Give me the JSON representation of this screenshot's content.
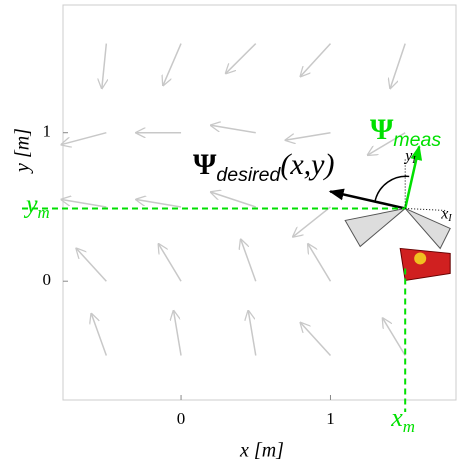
{
  "chart_data": {
    "type": "quiver",
    "x_label": "x [m]",
    "y_label": "y [m]",
    "xlim": [
      -0.79,
      1.84
    ],
    "ylim": [
      -0.8,
      1.86
    ],
    "xticks": [
      0,
      1
    ],
    "yticks": [
      0,
      1
    ],
    "series": [
      {
        "color": "#c8c8c8",
        "x": [
          -0.5,
          0,
          0.5,
          1.0,
          1.5,
          -0.5,
          0,
          0.5,
          1.0,
          1.5,
          -0.5,
          0,
          0.5,
          1.0,
          -0.5,
          0,
          0.5,
          1.0,
          -0.5,
          0,
          0.5,
          1.0,
          1.5
        ],
        "y": [
          1.6,
          1.6,
          1.6,
          1.6,
          1.6,
          1.0,
          1.0,
          1.0,
          1.0,
          1.0,
          0.5,
          0.5,
          0.5,
          0.5,
          0.0,
          0.0,
          0.0,
          0.0,
          -0.5,
          -0.5,
          -0.5,
          -0.5,
          -0.5
        ],
        "u": [
          -0.03,
          -0.12,
          -0.2,
          -0.2,
          -0.1,
          -0.3,
          -0.3,
          -0.3,
          -0.3,
          -0.25,
          -0.3,
          -0.3,
          -0.3,
          -0.25,
          -0.2,
          -0.15,
          -0.1,
          -0.15,
          -0.1,
          -0.05,
          -0.05,
          -0.2,
          -0.15
        ],
        "v": [
          -0.3,
          -0.28,
          -0.2,
          -0.22,
          -0.3,
          -0.08,
          0,
          0.05,
          -0.05,
          -0.15,
          0.05,
          0.05,
          0.1,
          -0.2,
          0.22,
          0.25,
          0.28,
          0.25,
          0.28,
          0.3,
          0.3,
          0.22,
          0.25
        ]
      }
    ],
    "robot": {
      "x": 1.5,
      "y": 0.49,
      "color": "#00e000"
    },
    "annotations": {
      "x_m": {
        "symbol": "x",
        "subscript": "m"
      },
      "y_m": {
        "symbol": "y",
        "subscript": "m"
      },
      "psi_desired": {
        "symbol": "Ψ",
        "subscript": "desired",
        "args": "(x,y)"
      },
      "psi_meas": {
        "symbol": "Ψ",
        "subscript": "meas"
      },
      "y_I": {
        "symbol": "y",
        "subscript": "I"
      },
      "x_I": {
        "symbol": "x",
        "subscript": "I"
      }
    }
  }
}
